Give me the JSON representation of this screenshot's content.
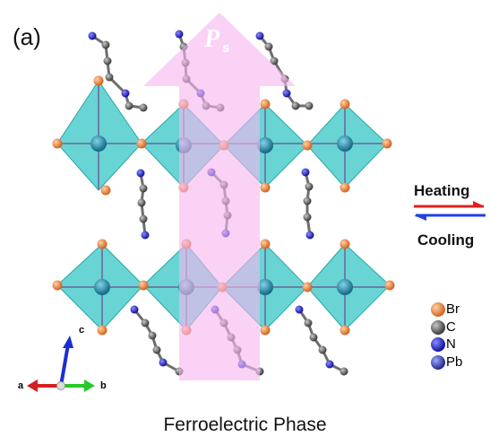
{
  "panel_label": "(a)",
  "polarization": {
    "symbol": "P",
    "subscript": "s"
  },
  "transition": {
    "up": "Heating",
    "down": "Cooling"
  },
  "legend": [
    {
      "element": "Br",
      "color": "#e8772d"
    },
    {
      "element": "C",
      "color": "#4a4a4a"
    },
    {
      "element": "N",
      "color": "#1b1bc8"
    },
    {
      "element": "Pb",
      "color": "#3a3fa8"
    }
  ],
  "axes": {
    "a": "a",
    "b": "b",
    "c": "c"
  },
  "caption": "Ferroelectric Phase",
  "colors": {
    "octahedron": "#3fc8c8",
    "arrow": "#f5b7ef",
    "heating": "#e02020",
    "cooling": "#2040e0",
    "axis_a": "#d42020",
    "axis_b": "#28c828",
    "axis_c": "#1b2fd0"
  }
}
